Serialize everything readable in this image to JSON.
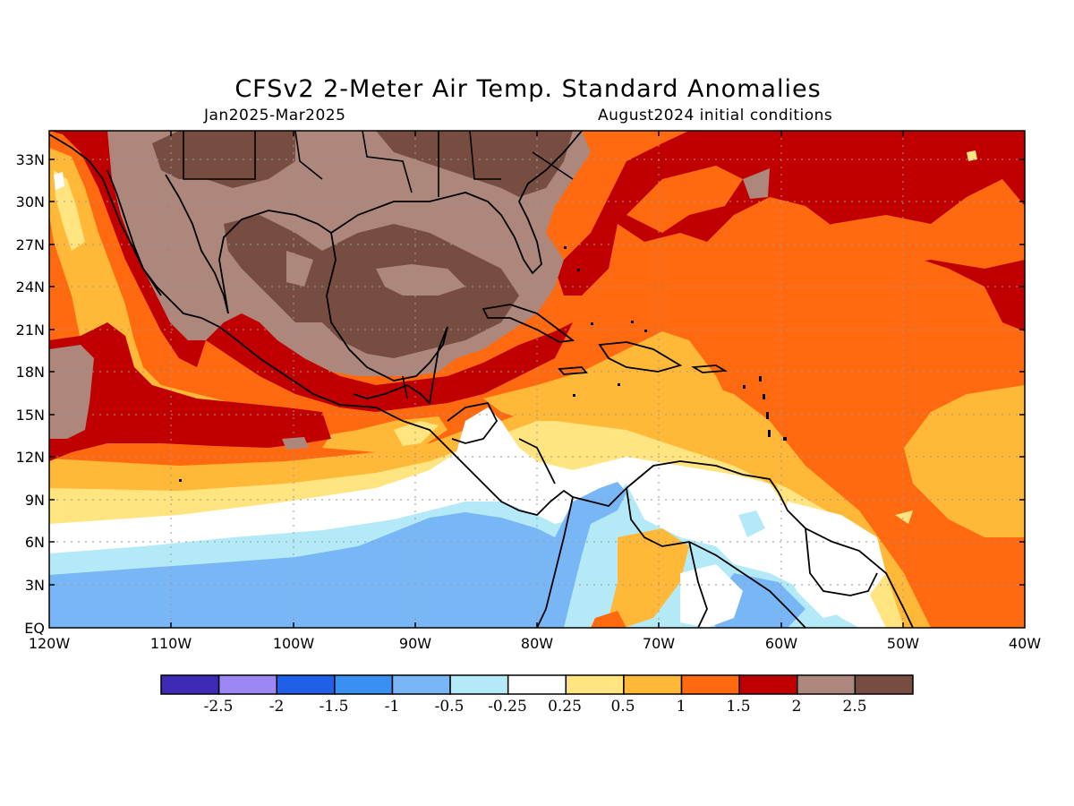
{
  "map": {
    "title": "CFSv2 2-Meter Air Temp. Standard Anomalies",
    "period": "Jan2025-Mar2025",
    "initial_conditions": "August2024 initial conditions",
    "lat_labels": [
      "33N",
      "30N",
      "27N",
      "24N",
      "21N",
      "18N",
      "15N",
      "12N",
      "9N",
      "6N",
      "3N",
      "EQ"
    ],
    "lon_labels": [
      "120W",
      "110W",
      "100W",
      "90W",
      "80W",
      "70W",
      "60W",
      "50W",
      "40W"
    ]
  },
  "legend": {
    "labels": [
      "-2.5",
      "-2",
      "-1.5",
      "-1",
      "-0.5",
      "-0.25",
      "0.25",
      "0.5",
      "1",
      "1.5",
      "2",
      "2.5"
    ],
    "colors": [
      "#3d2bb5",
      "#9c87f5",
      "#2060e8",
      "#3a90f0",
      "#78b6f5",
      "#b4eaf8",
      "#ffffff",
      "#ffe480",
      "#ffb838",
      "#ff6a10",
      "#c00000",
      "#ad877c",
      "#774d41"
    ]
  }
}
